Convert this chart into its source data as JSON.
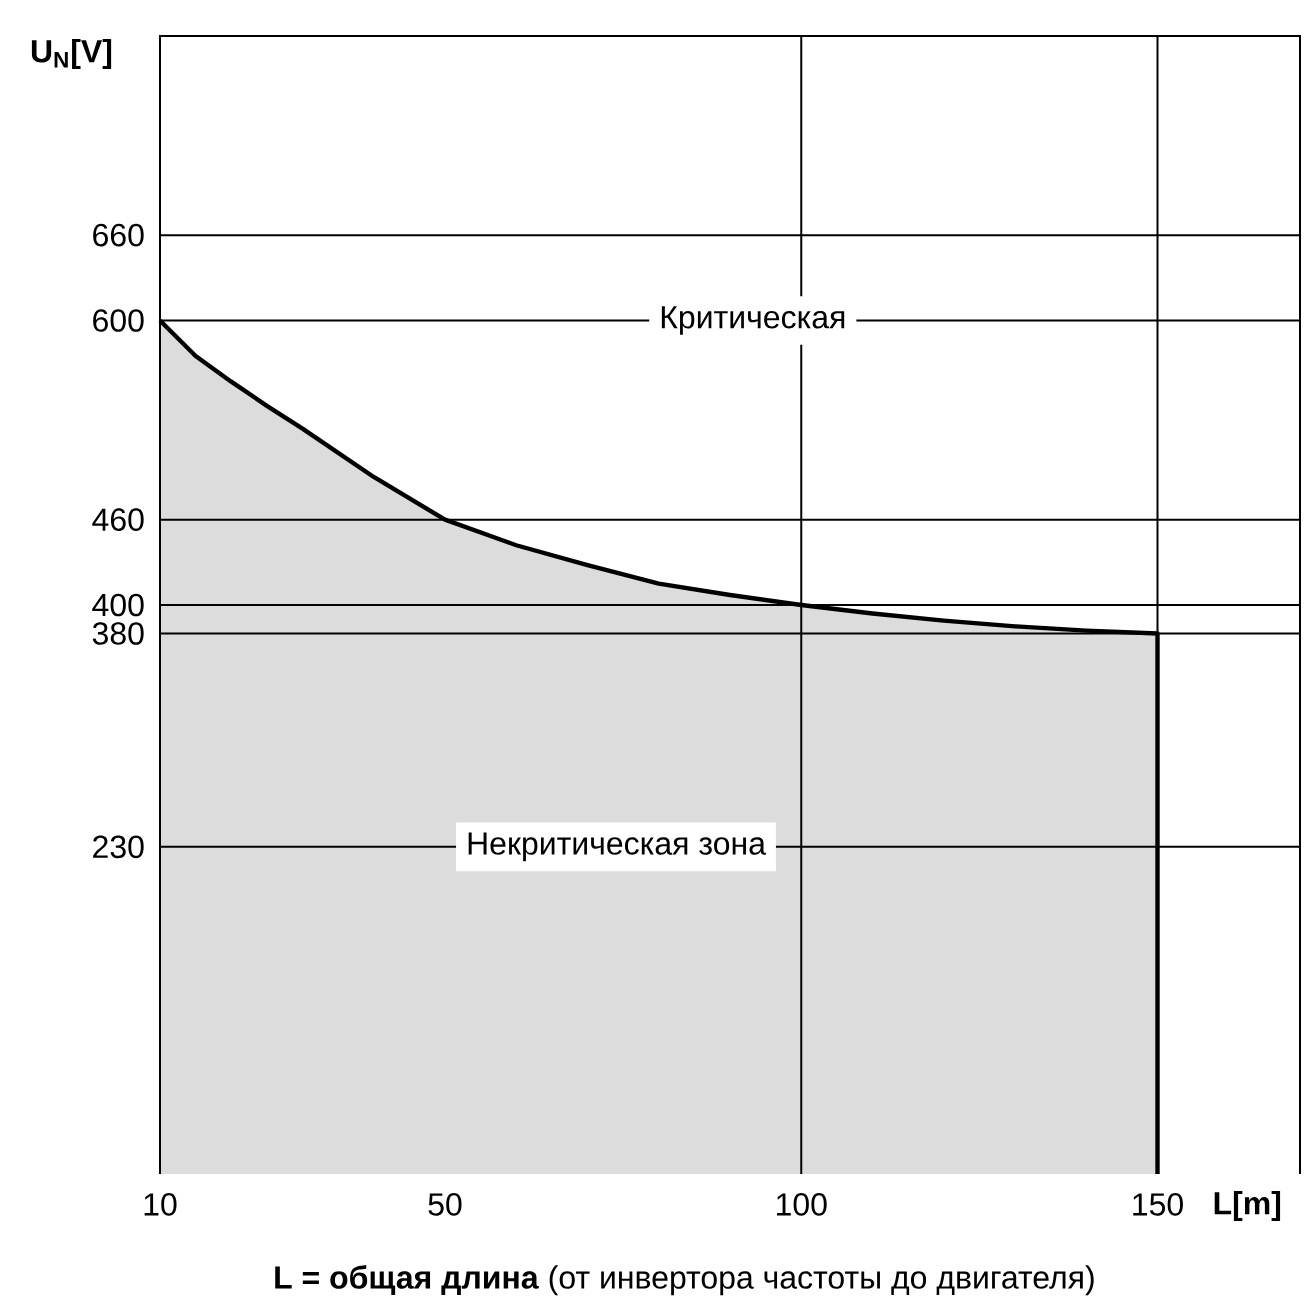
{
  "chart_data": {
    "type": "area",
    "x": [
      10,
      15,
      20,
      25,
      30,
      40,
      50,
      60,
      70,
      80,
      90,
      100,
      110,
      120,
      130,
      140,
      150
    ],
    "series": [
      {
        "color": "#dcdcdc",
        "values": [
          600,
          575,
          557,
          540,
          524,
          490,
          460,
          442,
          428,
          415,
          407,
          400,
          394,
          389,
          385,
          382,
          380
        ]
      }
    ],
    "xlim": [
      10,
      170
    ],
    "ylim": [
      0,
      800
    ],
    "xticks": [
      10,
      50,
      100,
      150
    ],
    "yticks": [
      230,
      380,
      400,
      460,
      600,
      660
    ],
    "xlabel": "L[m]",
    "ylabel": "U$_{N}$[V]",
    "grid": "y",
    "ref_lines": [
      {
        "axis": "x",
        "value": 100
      },
      {
        "axis": "x",
        "value": 150
      }
    ],
    "annotations": [
      "Критическая",
      "Некритическая зона",
      "**L = общая длина** (от инвертора частоты до двигателя)"
    ]
  }
}
